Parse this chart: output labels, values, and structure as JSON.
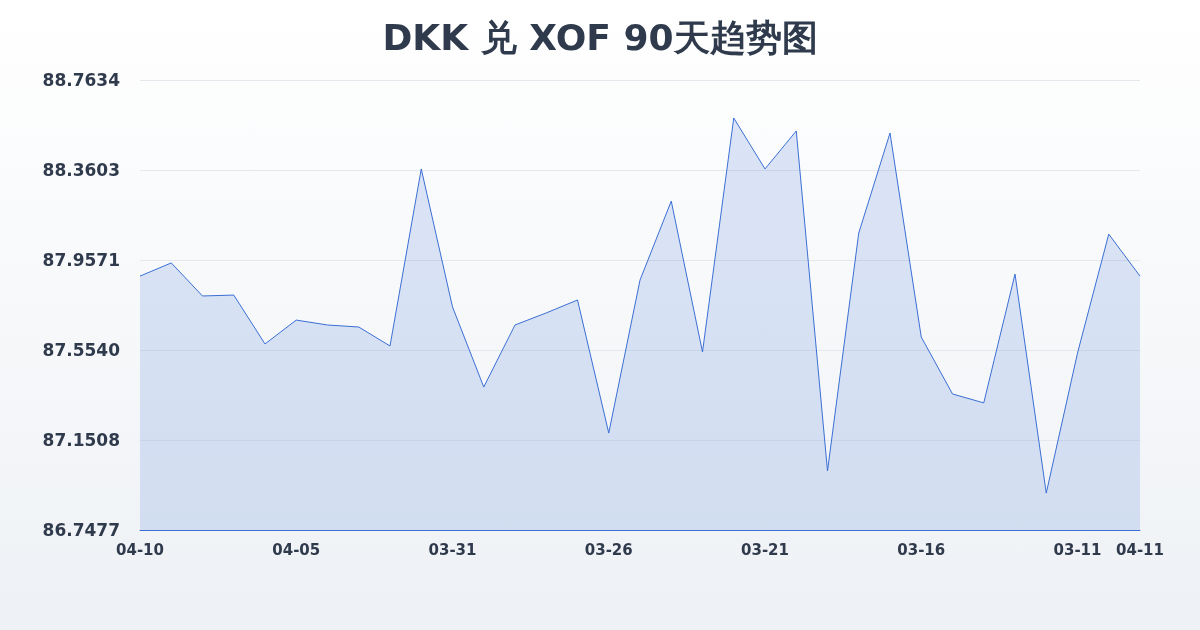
{
  "chart_data": {
    "type": "area",
    "title": "DKK 兑 XOF 90天趋势图",
    "categories": [
      "04-10",
      null,
      null,
      null,
      null,
      "04-05",
      null,
      null,
      null,
      null,
      "03-31",
      null,
      null,
      null,
      null,
      "03-26",
      null,
      null,
      null,
      null,
      "03-21",
      null,
      null,
      null,
      null,
      "03-16",
      null,
      null,
      null,
      null,
      "03-11",
      null,
      "04-11"
    ],
    "series": [
      {
        "color": "#3b6fd4",
        "values": [
          87.885,
          87.944,
          87.796,
          87.8,
          87.581,
          87.688,
          87.666,
          87.657,
          87.572,
          88.365,
          87.747,
          87.388,
          87.666,
          87.72,
          87.778,
          87.182,
          87.867,
          88.221,
          87.545,
          88.593,
          88.365,
          88.535,
          87.012,
          88.078,
          88.526,
          87.612,
          87.357,
          87.317,
          87.894,
          86.913,
          87.54,
          88.073,
          87.885
        ]
      }
    ],
    "ylim": [
      86.7477,
      88.7634
    ],
    "yticks": [
      {
        "value": 86.7477,
        "label": "86.7477"
      },
      {
        "value": 87.1508,
        "label": "87.1508"
      },
      {
        "value": 87.554,
        "label": "87.5540"
      },
      {
        "value": 87.9571,
        "label": "87.9571"
      },
      {
        "value": 88.3603,
        "label": "88.3603"
      },
      {
        "value": 88.7634,
        "label": "88.7634"
      }
    ],
    "grid": "y",
    "marker": "none",
    "line_style": "solid"
  }
}
